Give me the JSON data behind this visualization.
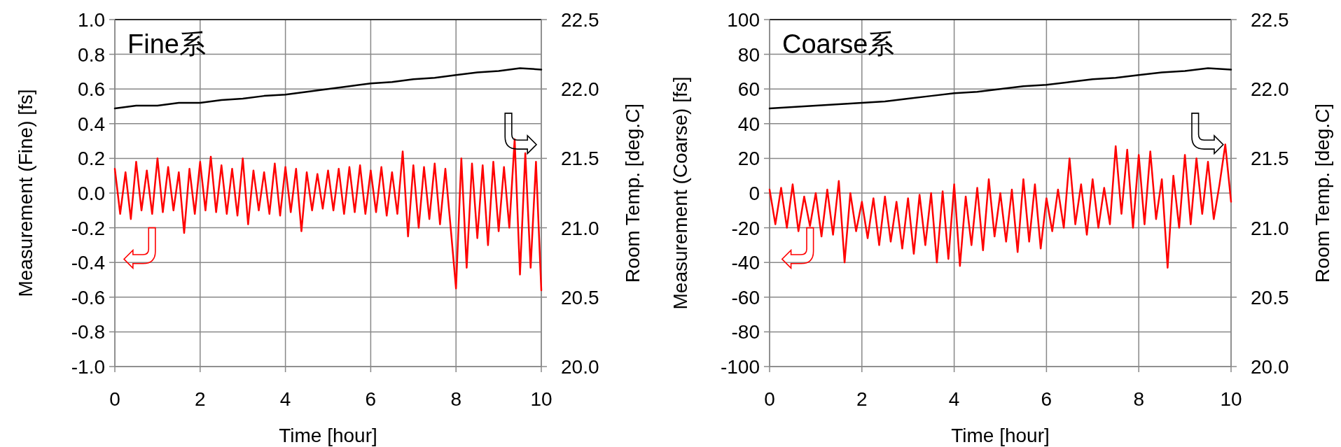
{
  "chart_data": [
    {
      "type": "line",
      "title": "Fine系",
      "xlabel": "Time [hour]",
      "ylabel": "Measurement (Fine) [fs]",
      "y2label": "Room Temp. [deg.C]",
      "grid": true,
      "xlim": [
        0,
        10
      ],
      "xticks": [
        0,
        2,
        4,
        6,
        8,
        10
      ],
      "ylim": [
        -1,
        1
      ],
      "yticks": [
        {
          "value": -1,
          "label": "-1.0"
        },
        {
          "value": -0.8,
          "label": "-0.8"
        },
        {
          "value": -0.6,
          "label": "-0.6"
        },
        {
          "value": -0.4,
          "label": "-0.4"
        },
        {
          "value": -0.2,
          "label": "-0.2"
        },
        {
          "value": 0,
          "label": "0.0"
        },
        {
          "value": 0.2,
          "label": "0.2"
        },
        {
          "value": 0.4,
          "label": "0.4"
        },
        {
          "value": 0.6,
          "label": "0.6"
        },
        {
          "value": 0.8,
          "label": "0.8"
        },
        {
          "value": 1,
          "label": "1.0"
        }
      ],
      "y2lim": [
        20,
        22.5
      ],
      "y2ticks": [
        {
          "value": 20,
          "label": "20.0"
        },
        {
          "value": 20.5,
          "label": "20.5"
        },
        {
          "value": 21,
          "label": "21.0"
        },
        {
          "value": 21.5,
          "label": "21.5"
        },
        {
          "value": 22,
          "label": "22.0"
        },
        {
          "value": 22.5,
          "label": "22.5"
        }
      ],
      "series": [
        {
          "color": "#ff0000",
          "x": [
            0,
            0.125,
            0.25,
            0.375,
            0.5,
            0.625,
            0.75,
            0.875,
            1,
            1.125,
            1.25,
            1.375,
            1.5,
            1.625,
            1.75,
            1.875,
            2,
            2.125,
            2.25,
            2.375,
            2.5,
            2.625,
            2.75,
            2.875,
            3,
            3.125,
            3.25,
            3.375,
            3.5,
            3.625,
            3.75,
            3.875,
            4,
            4.125,
            4.25,
            4.375,
            4.5,
            4.625,
            4.75,
            4.875,
            5,
            5.125,
            5.25,
            5.375,
            5.5,
            5.625,
            5.75,
            5.875,
            6,
            6.125,
            6.25,
            6.375,
            6.5,
            6.625,
            6.75,
            6.875,
            7,
            7.125,
            7.25,
            7.375,
            7.5,
            7.625,
            7.75,
            7.875,
            8,
            8.125,
            8.25,
            8.375,
            8.5,
            8.625,
            8.75,
            8.875,
            9,
            9.125,
            9.25,
            9.375,
            9.5,
            9.625,
            9.75,
            9.875,
            10
          ],
          "values": [
            0.14,
            -0.12,
            0.12,
            -0.15,
            0.18,
            -0.1,
            0.13,
            -0.12,
            0.2,
            -0.11,
            0.15,
            -0.1,
            0.12,
            -0.23,
            0.14,
            -0.12,
            0.18,
            -0.1,
            0.21,
            -0.11,
            0.16,
            -0.12,
            0.14,
            -0.13,
            0.2,
            -0.18,
            0.13,
            -0.1,
            0.12,
            -0.12,
            0.17,
            -0.13,
            0.15,
            -0.11,
            0.14,
            -0.22,
            0.12,
            -0.1,
            0.11,
            -0.09,
            0.13,
            -0.1,
            0.14,
            -0.12,
            0.15,
            -0.11,
            0.16,
            -0.12,
            0.13,
            -0.11,
            0.15,
            -0.13,
            0.12,
            -0.12,
            0.24,
            -0.25,
            0.16,
            -0.2,
            0.15,
            -0.15,
            0.17,
            -0.18,
            0.14,
            -0.2,
            -0.55,
            0.2,
            -0.43,
            0.17,
            -0.26,
            0.16,
            -0.3,
            0.18,
            -0.22,
            0.15,
            -0.2,
            0.31,
            -0.47,
            0.23,
            -0.43,
            0.18,
            -0.56
          ]
        },
        {
          "color": "#000000",
          "axis": "y2",
          "x": [
            0,
            0.5,
            1,
            1.5,
            2,
            2.5,
            3,
            3.5,
            4,
            4.5,
            5,
            5.5,
            6,
            6.5,
            7,
            7.5,
            8,
            8.5,
            9,
            9.5,
            10
          ],
          "values": [
            21.86,
            21.88,
            21.88,
            21.9,
            21.9,
            21.92,
            21.93,
            21.95,
            21.96,
            21.98,
            22.0,
            22.02,
            22.04,
            22.05,
            22.07,
            22.08,
            22.1,
            22.12,
            22.13,
            22.15,
            22.14
          ]
        }
      ]
    },
    {
      "type": "line",
      "title": "Coarse系",
      "xlabel": "Time [hour]",
      "ylabel": "Measurement (Coarse) [fs]",
      "y2label": "Room Temp. [deg.C]",
      "grid": true,
      "xlim": [
        0,
        10
      ],
      "xticks": [
        0,
        2,
        4,
        6,
        8,
        10
      ],
      "ylim": [
        -100,
        100
      ],
      "yticks": [
        -100,
        -80,
        -60,
        -40,
        -20,
        0,
        20,
        40,
        60,
        80,
        100
      ],
      "y2lim": [
        20,
        22.5
      ],
      "y2ticks": [
        {
          "value": 20,
          "label": "20.0"
        },
        {
          "value": 20.5,
          "label": "20.5"
        },
        {
          "value": 21,
          "label": "21.0"
        },
        {
          "value": 21.5,
          "label": "21.5"
        },
        {
          "value": 22,
          "label": "22.0"
        },
        {
          "value": 22.5,
          "label": "22.5"
        }
      ],
      "series": [
        {
          "color": "#ff0000",
          "x": [
            0,
            0.125,
            0.25,
            0.375,
            0.5,
            0.625,
            0.75,
            0.875,
            1,
            1.125,
            1.25,
            1.375,
            1.5,
            1.625,
            1.75,
            1.875,
            2,
            2.125,
            2.25,
            2.375,
            2.5,
            2.625,
            2.75,
            2.875,
            3,
            3.125,
            3.25,
            3.375,
            3.5,
            3.625,
            3.75,
            3.875,
            4,
            4.125,
            4.25,
            4.375,
            4.5,
            4.625,
            4.75,
            4.875,
            5,
            5.125,
            5.25,
            5.375,
            5.5,
            5.625,
            5.75,
            5.875,
            6,
            6.125,
            6.25,
            6.375,
            6.5,
            6.625,
            6.75,
            6.875,
            7,
            7.125,
            7.25,
            7.375,
            7.5,
            7.625,
            7.75,
            7.875,
            8,
            8.125,
            8.25,
            8.375,
            8.5,
            8.625,
            8.75,
            8.875,
            9,
            9.125,
            9.25,
            9.375,
            9.5,
            9.625,
            9.75,
            9.875,
            10
          ],
          "values": [
            2,
            -18,
            3,
            -20,
            5,
            -22,
            -2,
            -19,
            0,
            -25,
            2,
            -24,
            7,
            -40,
            0,
            -22,
            -5,
            -26,
            -3,
            -30,
            -2,
            -28,
            -5,
            -32,
            -3,
            -35,
            -1,
            -30,
            0,
            -40,
            1,
            -38,
            5,
            -42,
            -2,
            -30,
            3,
            -33,
            8,
            -25,
            0,
            -28,
            2,
            -34,
            8,
            -28,
            5,
            -32,
            -3,
            -22,
            2,
            -20,
            20,
            -18,
            5,
            -24,
            8,
            -20,
            3,
            -18,
            27,
            -12,
            25,
            -20,
            22,
            -18,
            24,
            -15,
            8,
            -43,
            10,
            -20,
            22,
            -18,
            20,
            -12,
            18,
            -15,
            5,
            28,
            -5
          ]
        },
        {
          "color": "#000000",
          "axis": "y2",
          "x": [
            0,
            0.5,
            1,
            1.5,
            2,
            2.5,
            3,
            3.5,
            4,
            4.5,
            5,
            5.5,
            6,
            6.5,
            7,
            7.5,
            8,
            8.5,
            9,
            9.5,
            10
          ],
          "values": [
            21.86,
            21.87,
            21.88,
            21.89,
            21.9,
            21.91,
            21.93,
            21.95,
            21.97,
            21.98,
            22.0,
            22.02,
            22.03,
            22.05,
            22.07,
            22.08,
            22.1,
            22.12,
            22.13,
            22.15,
            22.14
          ]
        }
      ]
    }
  ]
}
